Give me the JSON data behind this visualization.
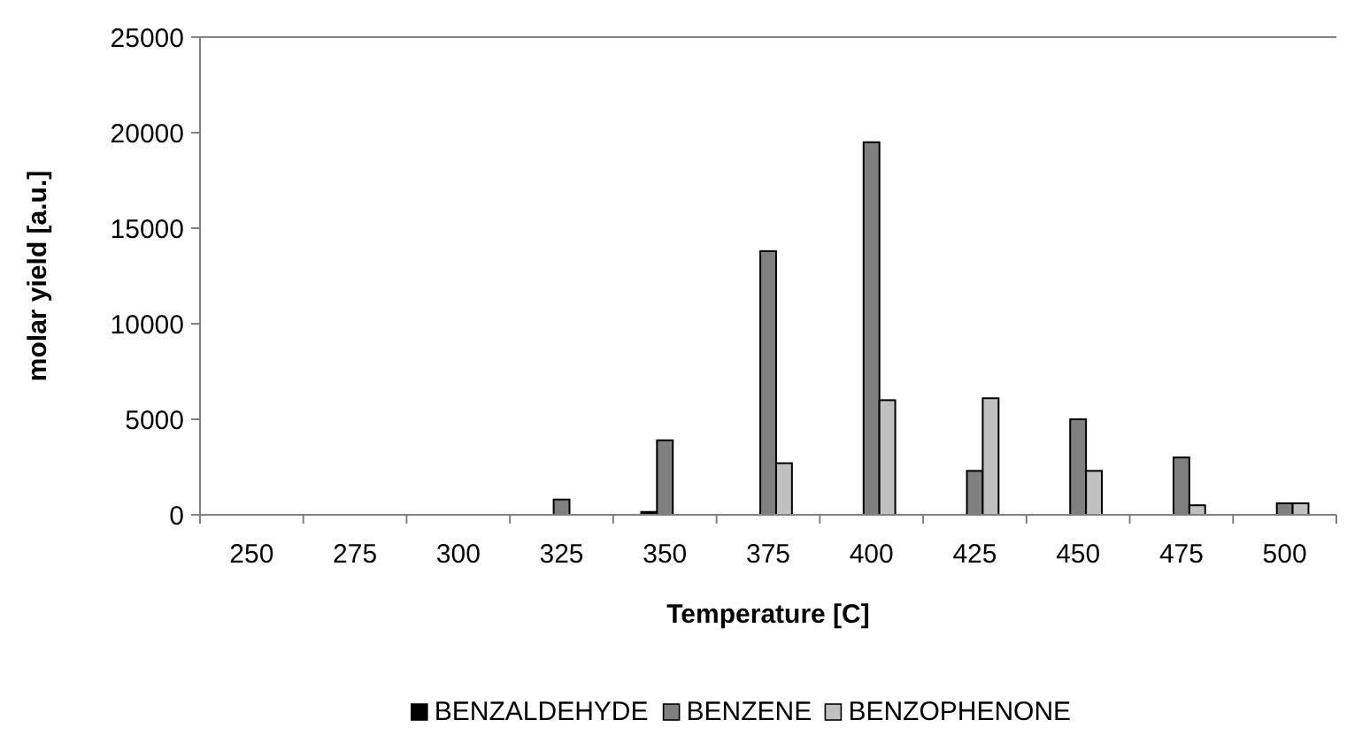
{
  "chart_data": {
    "type": "bar",
    "xlabel": "Temperature [C]",
    "ylabel": "molar yield [a.u.]",
    "categories": [
      "250",
      "275",
      "300",
      "325",
      "350",
      "375",
      "400",
      "425",
      "450",
      "475",
      "500"
    ],
    "series": [
      {
        "name": "BENZALDEHYDE",
        "color": "#000000",
        "values": [
          0,
          0,
          0,
          0,
          150,
          0,
          0,
          0,
          0,
          0,
          0
        ]
      },
      {
        "name": "BENZENE",
        "color": "#808080",
        "values": [
          0,
          0,
          0,
          800,
          3900,
          13800,
          19500,
          2300,
          5000,
          3000,
          600
        ]
      },
      {
        "name": "BENZOPHENONE",
        "color": "#c0c0c0",
        "values": [
          0,
          0,
          0,
          0,
          0,
          2700,
          6000,
          6100,
          2300,
          500,
          600
        ]
      }
    ],
    "ylim": [
      0,
      25000
    ],
    "yticks": [
      0,
      5000,
      10000,
      15000,
      20000,
      25000
    ],
    "legend": "bottom"
  }
}
